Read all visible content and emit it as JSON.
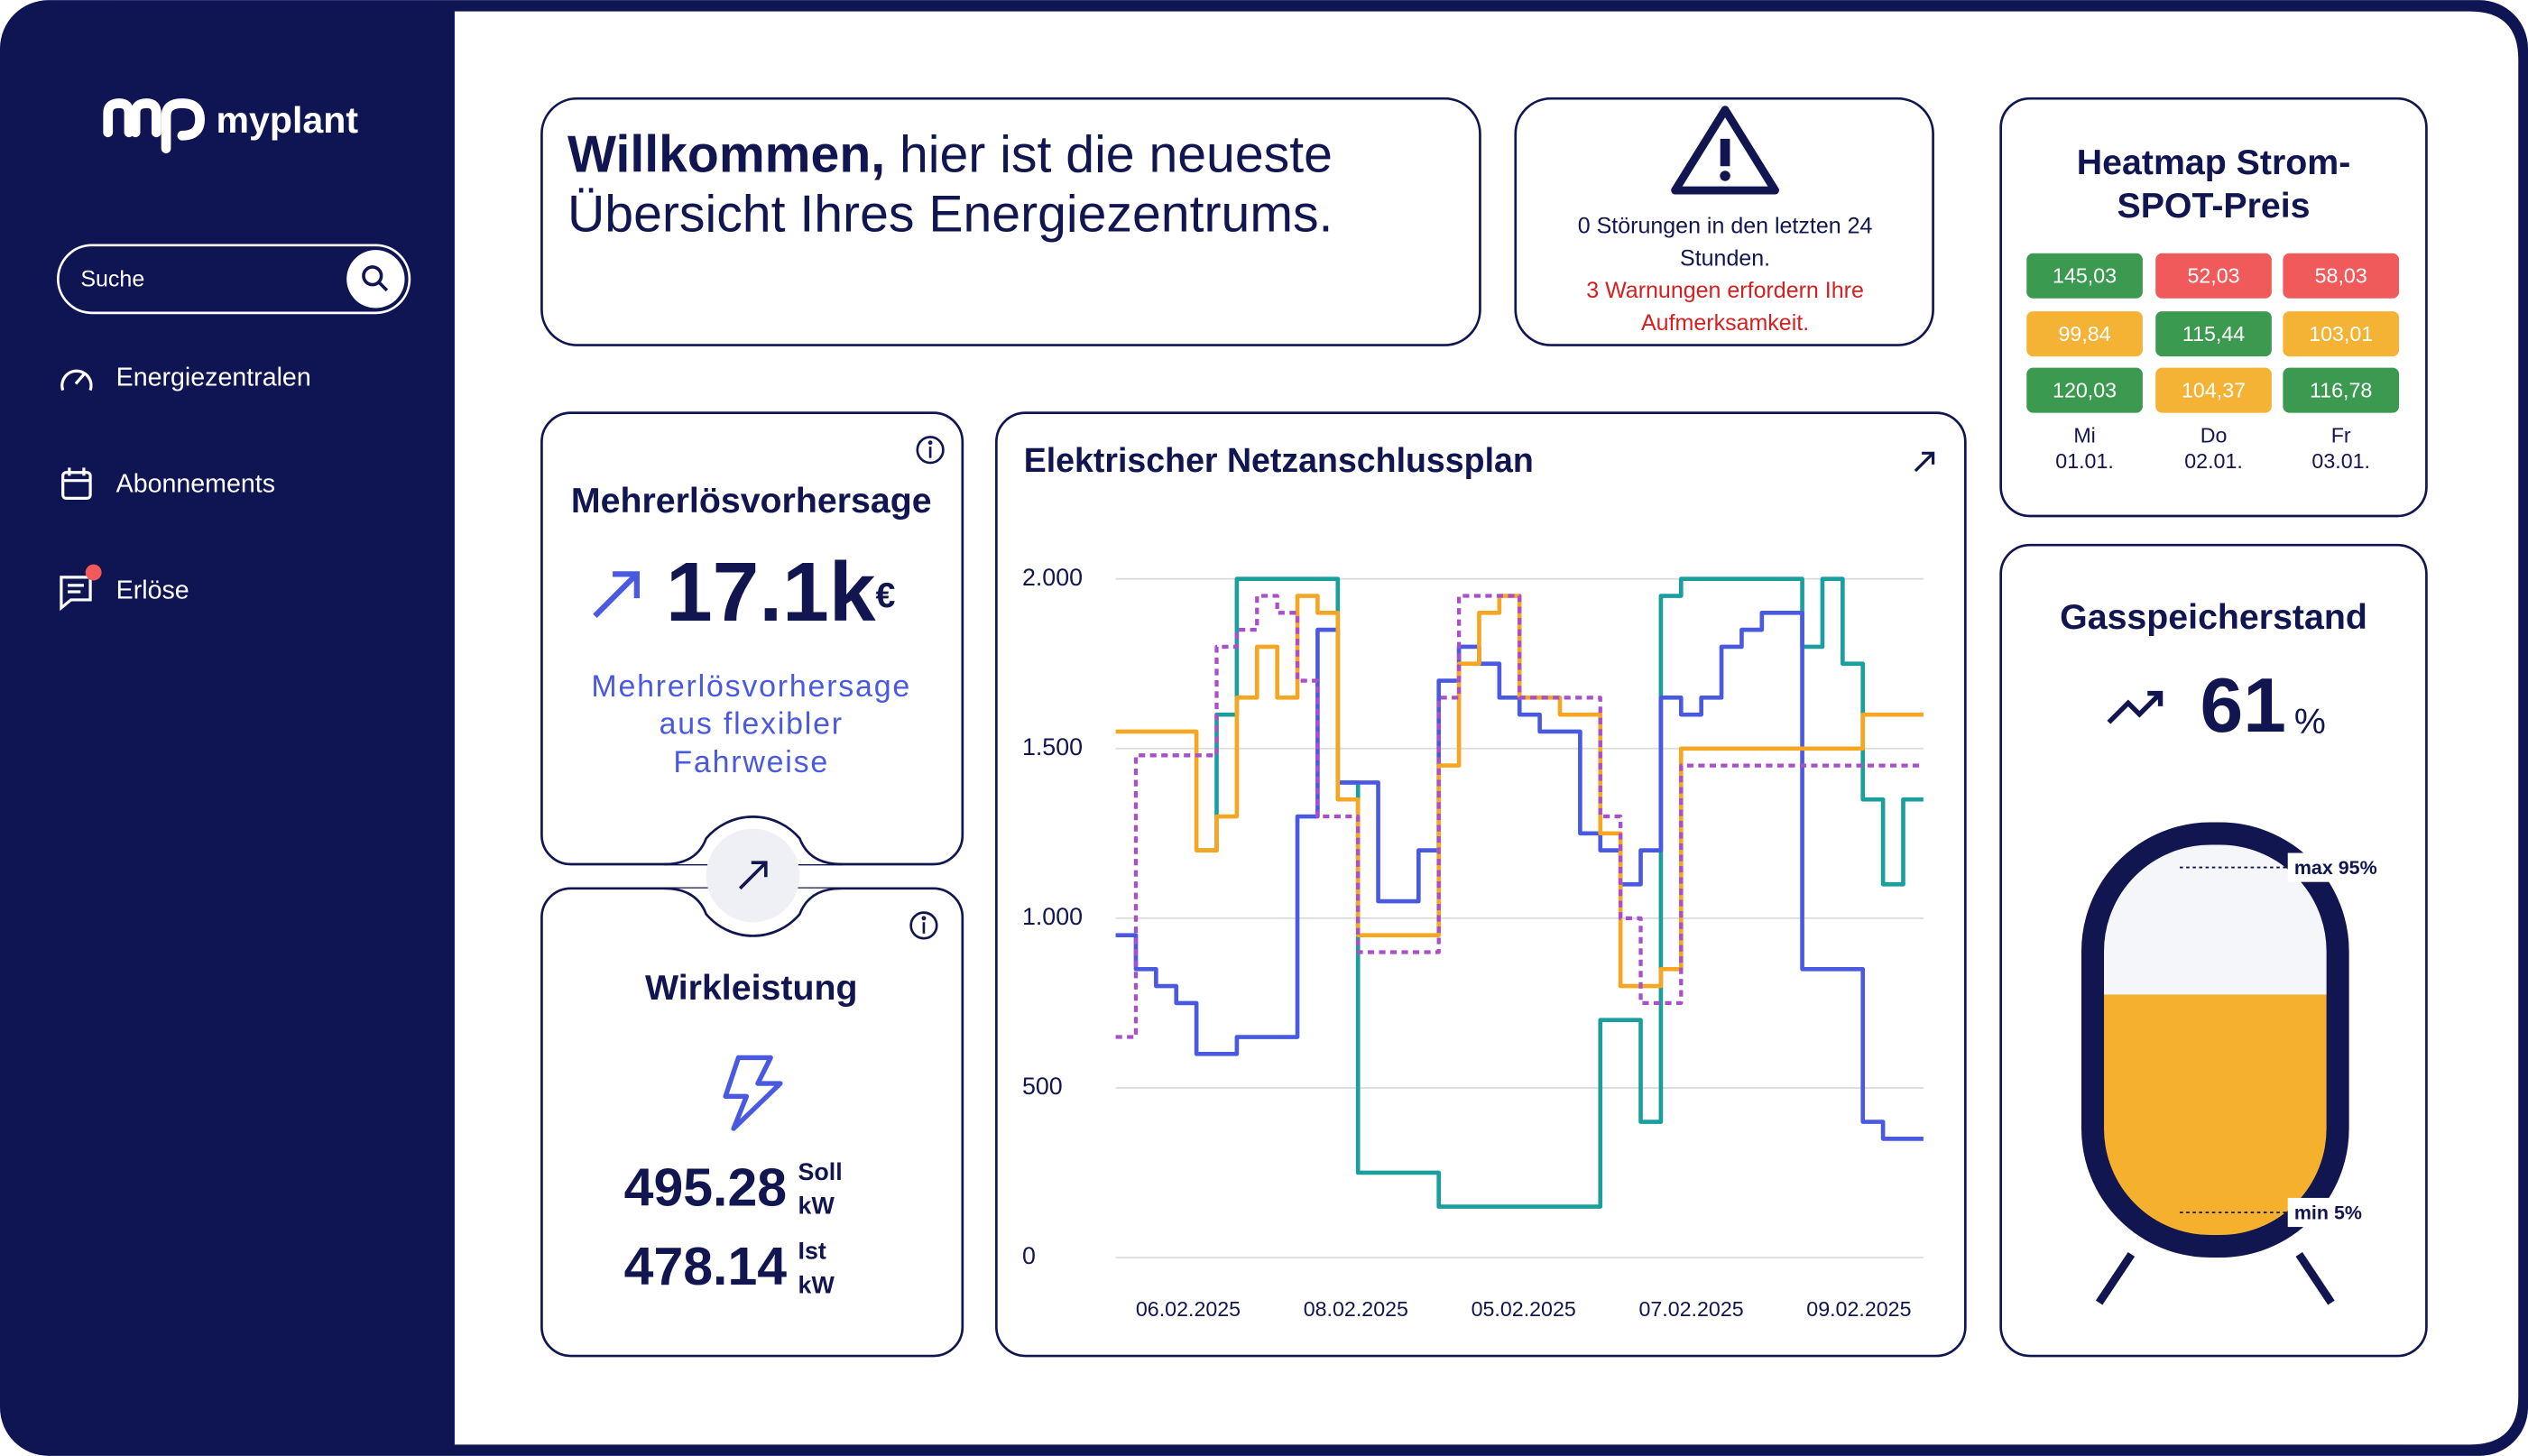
{
  "sidebar": {
    "brand": "myplant",
    "search_placeholder": "Suche",
    "menu": [
      "Energiezentralen",
      "Abonnements",
      "Erlöse"
    ]
  },
  "welcome": {
    "bold": "Willkommen,",
    "line1": "hier ist die neueste",
    "line2": "Übersicht Ihres Energiezentrums."
  },
  "alerts": {
    "info_lines": [
      "0 Störungen in den letzten 24",
      "Stunden."
    ],
    "warning_lines": [
      "3 Warnungen erfordern Ihre",
      "Aufmerksamkeit."
    ]
  },
  "heatmap": {
    "title_lines": [
      "Heatmap Strom-",
      "SPOT-Preis"
    ],
    "rows": [
      [
        {
          "text": "145,03",
          "color": "#3c9a50"
        },
        {
          "text": "52,03",
          "color": "#f05a5a"
        },
        {
          "text": "58,03",
          "color": "#f05a5a"
        }
      ],
      [
        {
          "text": "99,84",
          "color": "#f5b335"
        },
        {
          "text": "115,44",
          "color": "#3c9a50"
        },
        {
          "text": "103,01",
          "color": "#f5b335"
        }
      ],
      [
        {
          "text": "120,03",
          "color": "#3c9a50"
        },
        {
          "text": "104,37",
          "color": "#f5b335"
        },
        {
          "text": "116,78",
          "color": "#3c9a50"
        }
      ]
    ],
    "days": [
      {
        "day": "Mi",
        "date": "01.01."
      },
      {
        "day": "Do",
        "date": "02.01."
      },
      {
        "day": "Fr",
        "date": "03.01."
      }
    ]
  },
  "revenue": {
    "title": "Mehrerlösvorhersage",
    "value": "17.1k",
    "unit": "€",
    "desc_lines": [
      "Mehrerlösvorhersage",
      "aus flexibler",
      "Fahrweise"
    ]
  },
  "power": {
    "title": "Wirkleistung",
    "soll": "495.28",
    "soll_label": "Soll",
    "ist": "478.14",
    "ist_label": "Ist",
    "unit": "kW"
  },
  "gas": {
    "title": "Gasspeicherstand",
    "value": 61,
    "unit": "%",
    "max_label": "max 95%",
    "min_label": "min 5%"
  },
  "chart_data": {
    "type": "step-line",
    "title": "Elektrischer Netzanschlussplan",
    "ylim": [
      0,
      2000
    ],
    "yticks": [
      0,
      500,
      {
        "value": 1000,
        "label": "1.000"
      },
      {
        "value": 1500,
        "label": "1.500"
      },
      {
        "value": 2000,
        "label": "2.000"
      }
    ],
    "grid": true,
    "xtick_labels": [
      "06.02.2025",
      "08.02.2025",
      "05.02.2025",
      "07.02.2025",
      "09.02.2025"
    ],
    "series": [
      {
        "color": "#1a9e9e",
        "dash": false,
        "values": [
          null,
          null,
          null,
          null,
          1200,
          1600,
          2000,
          2000,
          2000,
          2000,
          2000,
          1400,
          250,
          250,
          250,
          250,
          150,
          150,
          150,
          150,
          150,
          150,
          150,
          150,
          700,
          700,
          400,
          1950,
          2000,
          2000,
          2000,
          2000,
          2000,
          2000,
          1800,
          2000,
          1750,
          1350,
          1100,
          1350
        ]
      },
      {
        "color": "#4a5ae0",
        "dash": false,
        "values": [
          950,
          850,
          800,
          750,
          600,
          600,
          650,
          650,
          650,
          1300,
          1850,
          1400,
          1400,
          1050,
          1050,
          1200,
          1700,
          1800,
          1750,
          1650,
          1600,
          1550,
          1550,
          1250,
          1200,
          1100,
          1200,
          1650,
          1600,
          1650,
          1800,
          1850,
          1900,
          1900,
          850,
          850,
          850,
          400,
          350,
          350
        ]
      },
      {
        "color": "#f5a623",
        "dash": false,
        "values": [
          1550,
          1550,
          1550,
          1550,
          1200,
          1300,
          1650,
          1800,
          1650,
          1950,
          1900,
          1350,
          950,
          950,
          950,
          950,
          1450,
          1750,
          1900,
          1950,
          1650,
          1650,
          1600,
          1600,
          1250,
          800,
          800,
          850,
          1500,
          1500,
          1500,
          1500,
          1500,
          1500,
          1500,
          1500,
          1500,
          1600,
          1600,
          1600
        ]
      },
      {
        "color": "#a94fc9",
        "dash": true,
        "values": [
          650,
          1480,
          1480,
          1480,
          1480,
          1800,
          1850,
          1950,
          1900,
          1700,
          1300,
          1300,
          900,
          900,
          900,
          900,
          1650,
          1950,
          1950,
          1950,
          1650,
          1650,
          1650,
          1650,
          1300,
          1000,
          750,
          750,
          1450,
          1450,
          1450,
          1450,
          1450,
          1450,
          1450,
          1450,
          1450,
          1450,
          1450,
          1450
        ]
      }
    ]
  }
}
